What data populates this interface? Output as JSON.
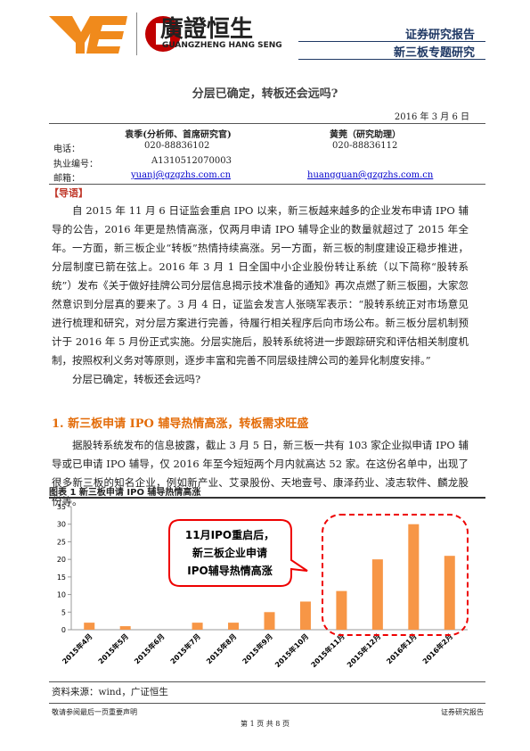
{
  "header": {
    "brand": "廣證恒生",
    "brand_en": "GUANGZHENG HANG SENG",
    "report_type": "证券研究报告",
    "report_series": "新三板专题研究"
  },
  "title": "分层已确定，转板还会远吗?",
  "date": "2016 年 3 月 6 日",
  "authors": {
    "names": [
      "袁季(分析师、首席研究官)",
      "黄莞（研究助理）"
    ],
    "rows": [
      {
        "label": "电话：",
        "values": [
          "020-88836102",
          "020-88836112"
        ]
      },
      {
        "label": "执业编号：",
        "values": [
          "A1310512070003"
        ]
      },
      {
        "label": "邮箱：",
        "values": [
          "yuanj@gzgzhs.com.cn",
          "huangguan@gzgzhs.com.cn"
        ]
      }
    ]
  },
  "intro_heading": "【导语】",
  "intro": [
    "自 2015 年 11 月 6 日证监会重启 IPO 以来，新三板越来越多的企业发布申请 IPO 辅导的公告，2016 年更是热情高涨，仅两月申请 IPO 辅导企业的数量就超过了 2015 年全年。",
    "一方面，新三板企业“转板”热情持续高涨。另一方面，新三板的制度建设正稳步推进，分层制度已箭在弦上。2016 年 3 月 1 日全国中小企业股份转让系统（以下简称“股转系统”）发布《关于做好挂牌公司分层信息揭示技术准备的通知》再次点燃了新三板圈，大家忽然意识到分层真的要来了。3 月 4 日，证监会发言人张晓军表示：“股转系统正对市场意见进行梳理和研究，对分层方案进行完善，待履行相关程序后向市场公布。新三板分层机制预计于 2016 年 5 月份正式实施。分层实施后，股转系统将进一步跟踪研究和评估相关制度机制，按照权利义务对等原则，逐步丰富和完善不同层级挂牌公司的差异化制度安排。”",
    "分层已确定，转板还会远吗?"
  ],
  "section": {
    "heading": "1. 新三板申请 IPO 辅导热情高涨，转板需求旺盛",
    "paragraph": "据股转系统发布的信息披露，截止 3 月 5 日，新三板一共有 103 家企业拟申请 IPO 辅导或已申请 IPO 辅导，仅 2016 年至今短短两个月内就高达 52 家。在这份名单中，出现了很多新三板的知名企业，例如新产业、艾录股份、天地壹号、康泽药业、凌志软件、麟龙股份等。"
  },
  "figure": {
    "caption": "图表 1 新三板申请 IPO 辅导热情高涨",
    "source": "资料来源：wind，广证恒生",
    "chart": {
      "type": "bar",
      "categories": [
        "2015年4月",
        "2015年5月",
        "2015年6月",
        "2015年7月",
        "2015年8月",
        "2015年9月",
        "2015年10月",
        "2015年11月",
        "2015年12月",
        "2016年1月",
        "2016年2月"
      ],
      "values": [
        2,
        1,
        0,
        2,
        2,
        5,
        8,
        11,
        20,
        30,
        21
      ],
      "color": "#f79646",
      "ylim": [
        0,
        35
      ],
      "yticks": [
        0,
        5,
        10,
        15,
        20,
        25,
        30,
        35
      ],
      "annotation": [
        "11月IPO重启后，",
        "新三板企业申请",
        "IPO辅导热情高涨"
      ]
    }
  },
  "footer": {
    "left": "敬请参阅最后一页重要声明",
    "page": "第 1 页 共 8 页",
    "right": "证券研究报告"
  }
}
